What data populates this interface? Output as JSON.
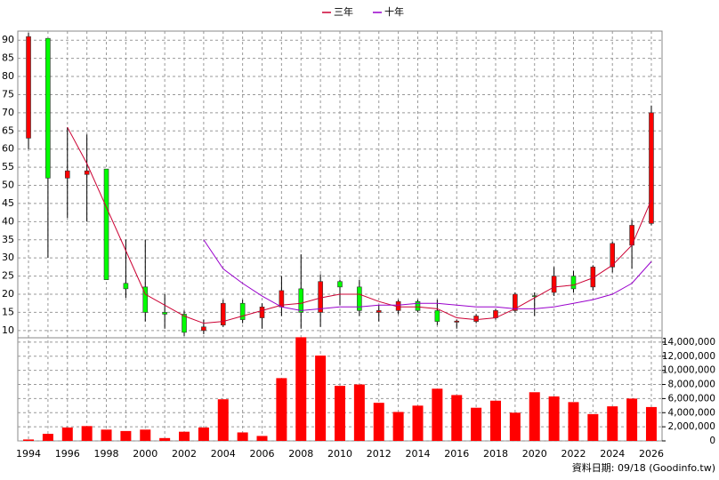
{
  "chart_data": [
    {
      "type": "candlestick",
      "x": [
        1994,
        1995,
        1996,
        1997,
        1998,
        1999,
        2000,
        2001,
        2002,
        2003,
        2004,
        2005,
        2006,
        2007,
        2008,
        2009,
        2010,
        2011,
        2012,
        2013,
        2014,
        2015,
        2016,
        2017,
        2018,
        2019,
        2020,
        2021,
        2022,
        2023,
        2024,
        2025,
        2026
      ],
      "open": [
        63,
        90.5,
        52,
        53,
        54.5,
        23,
        22,
        15,
        14.5,
        10,
        11.5,
        17.5,
        13.5,
        16.5,
        21.5,
        15,
        23.5,
        22,
        15,
        15.5,
        18,
        15.5,
        12.3,
        12.5,
        13.5,
        15.5,
        19.6,
        20.5,
        25,
        22,
        27.5,
        33.5,
        39.5
      ],
      "close": [
        91,
        52,
        54,
        54,
        24,
        21.5,
        15,
        14.5,
        9.5,
        11,
        17.5,
        13,
        16.5,
        21,
        15,
        23.5,
        22,
        15.5,
        15.5,
        18,
        15.5,
        12.5,
        12.6,
        14,
        15.5,
        20,
        19.4,
        25,
        21.5,
        27.5,
        34,
        39,
        70
      ],
      "high": [
        92,
        90.5,
        66,
        64,
        54.5,
        35,
        35,
        20,
        15.5,
        13,
        18.5,
        18.5,
        17.5,
        25,
        31,
        25.5,
        24,
        24,
        17,
        18.5,
        18.5,
        18.5,
        13,
        14.5,
        16,
        20.5,
        20.5,
        27.5,
        26.5,
        28,
        34.5,
        40.5,
        72
      ],
      "low": [
        60,
        30,
        41,
        40,
        24,
        19,
        12.5,
        10.5,
        8.5,
        9,
        11,
        12,
        10.5,
        14,
        10.5,
        11,
        17,
        14,
        12.5,
        14.5,
        15,
        11.5,
        10.5,
        12,
        13,
        15,
        14,
        19.5,
        20.5,
        21,
        26,
        27,
        39
      ],
      "up_color": "#ff0000",
      "down_color": "#00ff00",
      "series": [
        {
          "name": "三年",
          "color": "#cc0033",
          "values": [
            null,
            null,
            66,
            56,
            44,
            32,
            20,
            17,
            14,
            12,
            12.5,
            14,
            15.5,
            17,
            17.5,
            19,
            20,
            20,
            18,
            16.5,
            16.5,
            16,
            13.5,
            13,
            13.5,
            16,
            19,
            22,
            22.5,
            24.5,
            28,
            33.5,
            46
          ]
        },
        {
          "name": "十年",
          "color": "#9900cc",
          "values": [
            null,
            null,
            null,
            null,
            null,
            null,
            null,
            null,
            null,
            35,
            27,
            23,
            19.5,
            16.5,
            15.5,
            16,
            16.5,
            16.5,
            17,
            17,
            17.5,
            17.5,
            17,
            16.5,
            16.5,
            16,
            16,
            16.5,
            17.5,
            18.5,
            20,
            23,
            29
          ]
        }
      ],
      "xlim": [
        1993.45,
        2026.55
      ],
      "ylim": [
        8,
        92.5
      ],
      "yticks": [
        10,
        15,
        20,
        25,
        30,
        35,
        40,
        45,
        50,
        55,
        60,
        65,
        70,
        75,
        80,
        85,
        90
      ],
      "grid": true
    },
    {
      "type": "bar",
      "x": [
        1994,
        1995,
        1996,
        1997,
        1998,
        1999,
        2000,
        2001,
        2002,
        2003,
        2004,
        2005,
        2006,
        2007,
        2008,
        2009,
        2010,
        2011,
        2012,
        2013,
        2014,
        2015,
        2016,
        2017,
        2018,
        2019,
        2020,
        2021,
        2022,
        2023,
        2024,
        2025,
        2026
      ],
      "values": [
        200000,
        1000000,
        1900000,
        2100000,
        1600000,
        1400000,
        1600000,
        400000,
        1300000,
        1900000,
        5900000,
        1200000,
        700000,
        8900000,
        14700000,
        12100000,
        7800000,
        8000000,
        5400000,
        4100000,
        5000000,
        7400000,
        6500000,
        4700000,
        5700000,
        4000000,
        6900000,
        6300000,
        5500000,
        3800000,
        4900000,
        6000000,
        4800000
      ],
      "color": "#ff0000",
      "xlim": [
        1993.45,
        2026.55
      ],
      "xticks": [
        1994,
        1996,
        1998,
        2000,
        2002,
        2004,
        2006,
        2008,
        2010,
        2012,
        2014,
        2016,
        2018,
        2020,
        2022,
        2024,
        2026
      ],
      "ylim": [
        0,
        15000000
      ],
      "yticks": [
        0,
        {
          "value": 2000000,
          "label": "2,000,000"
        },
        {
          "value": 4000000,
          "label": "4,000,000"
        },
        {
          "value": 6000000,
          "label": "6,000,000"
        },
        {
          "value": 8000000,
          "label": "8,000,000"
        },
        {
          "value": 10000000,
          "label": "10,000,000"
        },
        {
          "value": 12000000,
          "label": "12,000,000"
        },
        {
          "value": 14000000,
          "label": "14,000,000"
        }
      ],
      "grid": true,
      "source": "資料日期: 09/18 (Goodinfo.tw)"
    }
  ]
}
